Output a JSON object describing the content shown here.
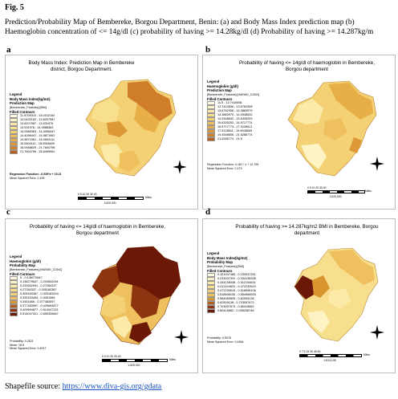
{
  "figure": {
    "label": "Fig. 5",
    "caption_line1": "Prediction/Probability Map of Bembereke, Borgou Department, Benin: (a) and Body Mass Index prediction map (b)",
    "caption_line2": "Haemoglobin concentration of <= 14g/dl (c) probability of having >= 14.28kg/dl (d) Probability of having >= 14.287kg/m"
  },
  "source": {
    "label": "Shapefile source: ",
    "link": "https://www.diva-gis.org/gdata"
  },
  "panels": {
    "a": {
      "letter": "a",
      "title": "Body Mass Index: Prediction Map in Bembereke district, Borgou Department.",
      "legend_title": "Legend",
      "legend_heading": "Body Mass Index(kg/m2)",
      "map_type": "Prediction Map",
      "layer": "[Bembereke_Features] [BMI]",
      "contours_label": "Filled Contours",
      "classes": [
        {
          "label": "11.9700003 - 13.0432162",
          "color": "#fffbe0"
        },
        {
          "label": "13.0432162 - 13.6207987",
          "color": "#fdf3c4"
        },
        {
          "label": "13.6207987 - 13.931976",
          "color": "#fbeaa8"
        },
        {
          "label": "13.931976 - 14.0988363",
          "color": "#f8df8d"
        },
        {
          "label": "14.0988363 - 14.4098447",
          "color": "#f4d174"
        },
        {
          "label": "14.4098447 - 14.9871961",
          "color": "#efc15e"
        },
        {
          "label": "14.9871961 - 16.0604111",
          "color": "#e8af49"
        },
        {
          "label": "16.0604111 - 18.0948629",
          "color": "#dd9838"
        },
        {
          "label": "18.0948629 - 21.7604796",
          "color": "#cf7d28"
        },
        {
          "label": "21.7604796 - 28.6499962",
          "color": "#b85f18"
        }
      ],
      "regression": "Regression Function: -0.039*x + 15.21",
      "mse": "Mean Squared Error: 2.495",
      "scale_ticks": "0   5   10        20        30        40",
      "scale_unit": "Miles",
      "scale_ratio": "1:625,000"
    },
    "b": {
      "letter": "b",
      "title": "Probability of having <= 14g/dl of haemoglobin in Bembereke, Borgou department",
      "legend_title": "Legend",
      "legend_heading": "Haemoglobin (g/dl)",
      "map_type": "Prediction Map",
      "layer": "[Bembereke_Features] [HAEMO_CONC]",
      "contours_label": "Filled Contours",
      "classes": [
        {
          "label": "11.5 - 12.7410836",
          "color": "#fffbe0"
        },
        {
          "label": "12.7410836 - 13.6762358",
          "color": "#fdf3c4"
        },
        {
          "label": "13.6762358 - 14.3883979",
          "color": "#fbeaa8"
        },
        {
          "label": "14.3883979 - 14.9348632",
          "color": "#f8df8d"
        },
        {
          "label": "14.9348632 - 15.6335253",
          "color": "#f4d174"
        },
        {
          "label": "15.6335253 - 16.5717774",
          "color": "#efc15e"
        },
        {
          "label": "16.5717774 - 17.9128611",
          "color": "#e8af49"
        },
        {
          "label": "17.9128611 - 19.4548655",
          "color": "#dd9838"
        },
        {
          "label": "19.4548655 - 21.6286774",
          "color": "#cf7d28"
        },
        {
          "label": "21.6286774 - 24.5",
          "color": "#b85f18"
        }
      ],
      "regression": "Regression Function: 0.181 * x + 12.709",
      "mse": "Mean Squared Error: 2.473",
      "scale_ticks": "0    5   10        20       30       40",
      "scale_unit": "Miles",
      "scale_ratio": "1:625,000"
    },
    "c": {
      "letter": "c",
      "title": "Probability of having <= 14g/dl of haemoglobin in Bembereke, Borgou department",
      "legend_title": "Legend",
      "legend_heading": "Haemoglobin (g/dl)",
      "map_type": "Probability Map",
      "layer": "[Bembereke_Features] [HAEMO_CONC]",
      "contours_label": "Filled Contours",
      "classes": [
        {
          "label": "0 - 0.136279647",
          "color": "#fffbe0"
        },
        {
          "label": "0.136279647 - 0.220632091",
          "color": "#fdf3c4"
        },
        {
          "label": "0.220632091 - 0.27284337",
          "color": "#fbeaa8"
        },
        {
          "label": "0.27284337 - 0.305160367",
          "color": "#f8df8d"
        },
        {
          "label": "0.305160367 - 0.325163494",
          "color": "#f4d174"
        },
        {
          "label": "0.325163494 - 0.3451666",
          "color": "#efc15e"
        },
        {
          "label": "0.3451666 - 0.377483597",
          "color": "#d9952f"
        },
        {
          "label": "0.377483597 - 0.429694877",
          "color": "#b4601a"
        },
        {
          "label": "0.429694877 - 0.514047321",
          "color": "#8c3510"
        },
        {
          "label": "0.514047321 - 0.650326867",
          "color": "#6b1806"
        }
      ],
      "regression": "Probability: 0.2621",
      "mean": "Mean: 15.5",
      "mse": "Mean Squared Error: 0.4917",
      "scale_ticks": "0    5   10       20       30       40",
      "scale_unit": "Miles",
      "scale_ratio": "1:625,000"
    },
    "d": {
      "letter": "d",
      "title": "Probability of having >= 14.287kg/m2 BMI  in Bembereke, Borgou department",
      "legend_title": "Legend",
      "legend_heading": "Body Mass Index(kg/m2)",
      "map_type": "Probability Map",
      "layer": "[Bembereke_Features] [BMI]",
      "contours_label": "Filled Contours",
      "classes": [
        {
          "label": "0.101937465 - 0.233037391",
          "color": "#fffbe0"
        },
        {
          "label": "0.233037391 - 0.334138338",
          "color": "#fdf3c4"
        },
        {
          "label": "0.334138338 - 0.412104631",
          "color": "#fbeaa8"
        },
        {
          "label": "0.412104631 - 0.472230619",
          "color": "#f8df8d"
        },
        {
          "label": "0.472230619 - 0.518598106",
          "color": "#f4d174"
        },
        {
          "label": "0.518598106 - 0.564965593",
          "color": "#efc15e"
        },
        {
          "label": "0.564965593 - 0.62509138",
          "color": "#d9952f"
        },
        {
          "label": "0.62509138 - 0.703057673",
          "color": "#b4601a"
        },
        {
          "label": "0.703057673 - 0.80415862",
          "color": "#8c3510"
        },
        {
          "label": "0.80415862 - 0.935258746",
          "color": "#6b1806"
        }
      ],
      "regression": "Probability: 0.5078",
      "mse": "Mean Squared Error: 0.4964",
      "scale_ticks": "0    7.5   15        30        45        60",
      "scale_unit": "Miles",
      "scale_ratio": "1:813,108"
    }
  }
}
